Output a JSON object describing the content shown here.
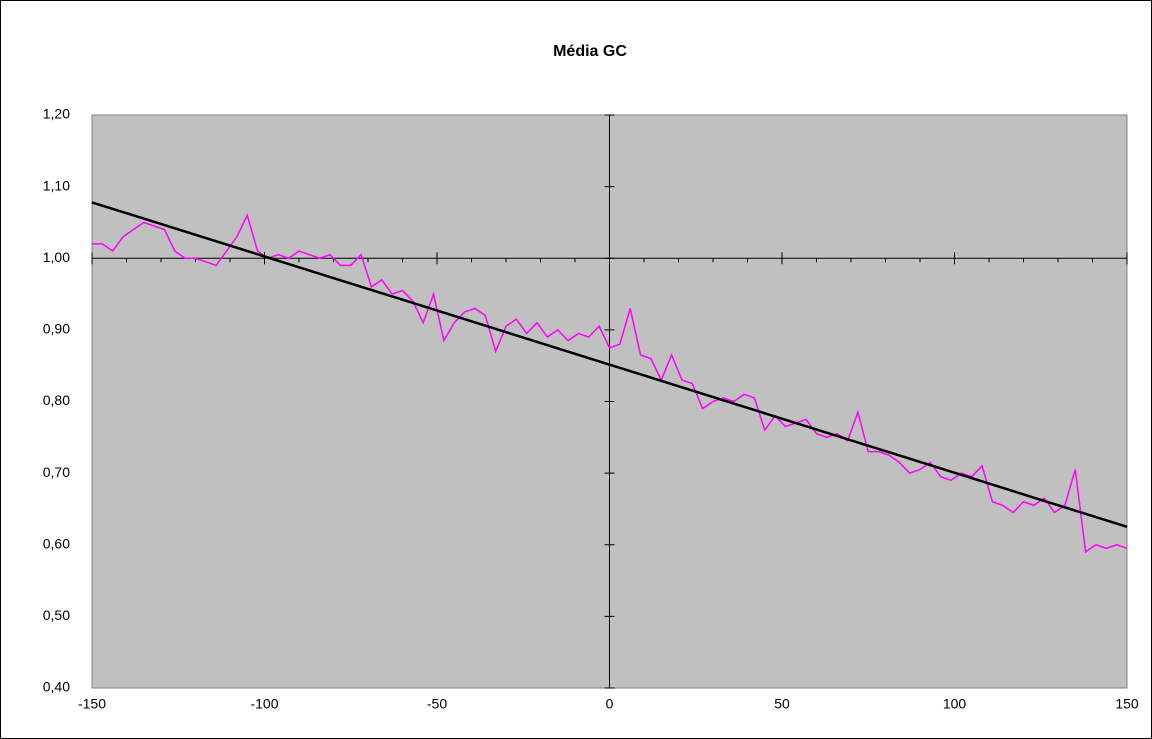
{
  "chart_data": {
    "type": "line",
    "title": "Média GC",
    "xlim": [
      -150,
      150
    ],
    "xticks": [
      -150,
      -100,
      -50,
      0,
      50,
      100,
      150
    ],
    "x_minor_step": 10,
    "ylim": [
      0.4,
      1.2
    ],
    "yticks": [
      {
        "value": 0.4,
        "label": "0,40"
      },
      {
        "value": 0.5,
        "label": "0,50"
      },
      {
        "value": 0.6,
        "label": "0,60"
      },
      {
        "value": 0.7,
        "label": "0,70"
      },
      {
        "value": 0.8,
        "label": "0,80"
      },
      {
        "value": 0.9,
        "label": "0,90"
      },
      {
        "value": 1.0,
        "label": "1,00"
      },
      {
        "value": 1.1,
        "label": "1,10"
      },
      {
        "value": 1.2,
        "label": "1,20"
      }
    ],
    "x_axis_crosses_y": 1.0,
    "y_axis_crosses_x": 0,
    "plot_background": "#c0c0c0",
    "series": [
      {
        "color": "#ff00ff",
        "width": 1.5,
        "x": [
          -150,
          -147,
          -144,
          -141,
          -138,
          -135,
          -132,
          -129,
          -126,
          -123,
          -120,
          -117,
          -114,
          -111,
          -108,
          -105,
          -102,
          -99,
          -96,
          -93,
          -90,
          -87,
          -84,
          -81,
          -78,
          -75,
          -72,
          -69,
          -66,
          -63,
          -60,
          -57,
          -54,
          -51,
          -48,
          -45,
          -42,
          -39,
          -36,
          -33,
          -30,
          -27,
          -24,
          -21,
          -18,
          -15,
          -12,
          -9,
          -6,
          -3,
          0,
          3,
          6,
          9,
          12,
          15,
          18,
          21,
          24,
          27,
          30,
          33,
          36,
          39,
          42,
          45,
          48,
          51,
          54,
          57,
          60,
          63,
          66,
          69,
          72,
          75,
          78,
          81,
          84,
          87,
          90,
          93,
          96,
          99,
          102,
          105,
          108,
          111,
          114,
          117,
          120,
          123,
          126,
          129,
          132,
          135,
          138,
          141,
          144,
          147,
          150
        ],
        "values": [
          1.02,
          1.02,
          1.01,
          1.03,
          1.04,
          1.05,
          1.045,
          1.04,
          1.01,
          1.0,
          1.0,
          0.995,
          0.99,
          1.01,
          1.03,
          1.06,
          1.01,
          1.0,
          1.005,
          1.0,
          1.01,
          1.005,
          1.0,
          1.005,
          0.99,
          0.99,
          1.005,
          0.96,
          0.97,
          0.95,
          0.955,
          0.94,
          0.91,
          0.95,
          0.885,
          0.91,
          0.925,
          0.93,
          0.92,
          0.87,
          0.905,
          0.915,
          0.895,
          0.91,
          0.89,
          0.9,
          0.885,
          0.895,
          0.89,
          0.905,
          0.875,
          0.88,
          0.93,
          0.865,
          0.86,
          0.83,
          0.865,
          0.83,
          0.825,
          0.79,
          0.8,
          0.805,
          0.8,
          0.81,
          0.805,
          0.76,
          0.78,
          0.765,
          0.77,
          0.775,
          0.755,
          0.75,
          0.755,
          0.745,
          0.785,
          0.73,
          0.73,
          0.725,
          0.715,
          0.7,
          0.705,
          0.715,
          0.695,
          0.69,
          0.7,
          0.695,
          0.71,
          0.66,
          0.655,
          0.645,
          0.66,
          0.655,
          0.665,
          0.645,
          0.655,
          0.705,
          0.59,
          0.6,
          0.595,
          0.6,
          0.595
        ]
      },
      {
        "color": "#000000",
        "width": 2.5,
        "x": [
          -150,
          150
        ],
        "values": [
          1.078,
          0.625
        ]
      }
    ]
  }
}
